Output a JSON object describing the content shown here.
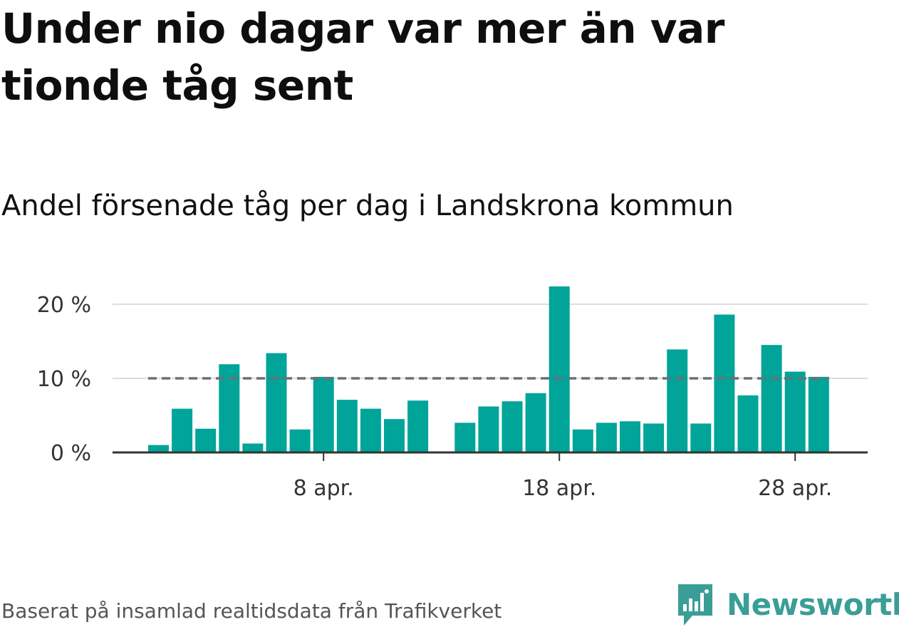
{
  "title": "Under nio dagar var mer än var tionde tåg sent",
  "subtitle": "Andel försenade tåg per dag i Landskrona kommun",
  "source": "Baserat på insamlad realtidsdata från Trafikverket",
  "brand": "Newsworthy",
  "colors": {
    "bar": "#00a499",
    "reference_line": "#6e6e76",
    "grid": "#dcdcdc",
    "axis": "#333333",
    "brand": "#3a9e96"
  },
  "chart_data": {
    "type": "bar",
    "x_unit": "day",
    "x": [
      "2024-04-01",
      "2024-04-02",
      "2024-04-03",
      "2024-04-04",
      "2024-04-05",
      "2024-04-06",
      "2024-04-07",
      "2024-04-08",
      "2024-04-09",
      "2024-04-10",
      "2024-04-11",
      "2024-04-12",
      "2024-04-13",
      "2024-04-14",
      "2024-04-15",
      "2024-04-16",
      "2024-04-17",
      "2024-04-18",
      "2024-04-19",
      "2024-04-20",
      "2024-04-21",
      "2024-04-22",
      "2024-04-23",
      "2024-04-24",
      "2024-04-25",
      "2024-04-26",
      "2024-04-27",
      "2024-04-28",
      "2024-04-29"
    ],
    "values": [
      1.0,
      5.9,
      3.2,
      11.9,
      1.2,
      13.4,
      3.1,
      10.2,
      7.1,
      5.9,
      4.5,
      7.0,
      null,
      4.0,
      6.2,
      6.9,
      8.0,
      22.4,
      3.1,
      4.0,
      4.2,
      3.9,
      13.9,
      3.9,
      18.6,
      7.7,
      14.5,
      10.9,
      10.2
    ],
    "ylim": [
      0,
      22.4
    ],
    "y_ticks": [
      0,
      10,
      20
    ],
    "y_tick_labels": [
      "0 %",
      "10 %",
      "20 %"
    ],
    "x_ticks": [
      "2024-04-08",
      "2024-04-18",
      "2024-04-28"
    ],
    "x_tick_labels": [
      "8 apr.",
      "18 apr.",
      "28 apr."
    ],
    "reference_line": {
      "y": 10,
      "style": "dashed"
    },
    "grid": "horizontal",
    "legend": "none"
  }
}
